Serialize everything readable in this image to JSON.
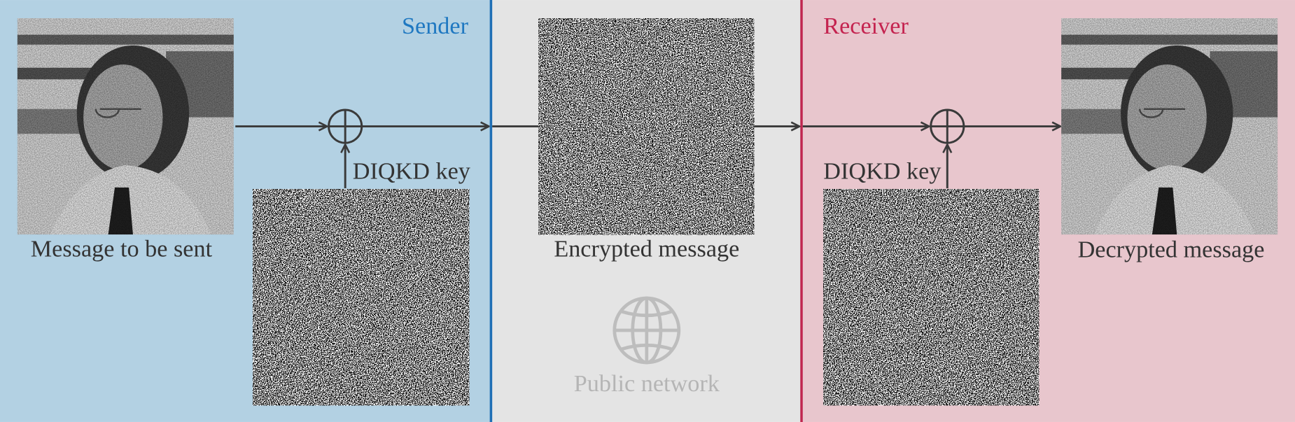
{
  "sender": {
    "label": "Sender",
    "message_caption": "Message to be sent",
    "key_label": "DIQKD key"
  },
  "network": {
    "encrypted_caption": "Encrypted message",
    "label": "Public network"
  },
  "receiver": {
    "label": "Receiver",
    "key_label": "DIQKD key",
    "decrypted_caption": "Decrypted message"
  }
}
